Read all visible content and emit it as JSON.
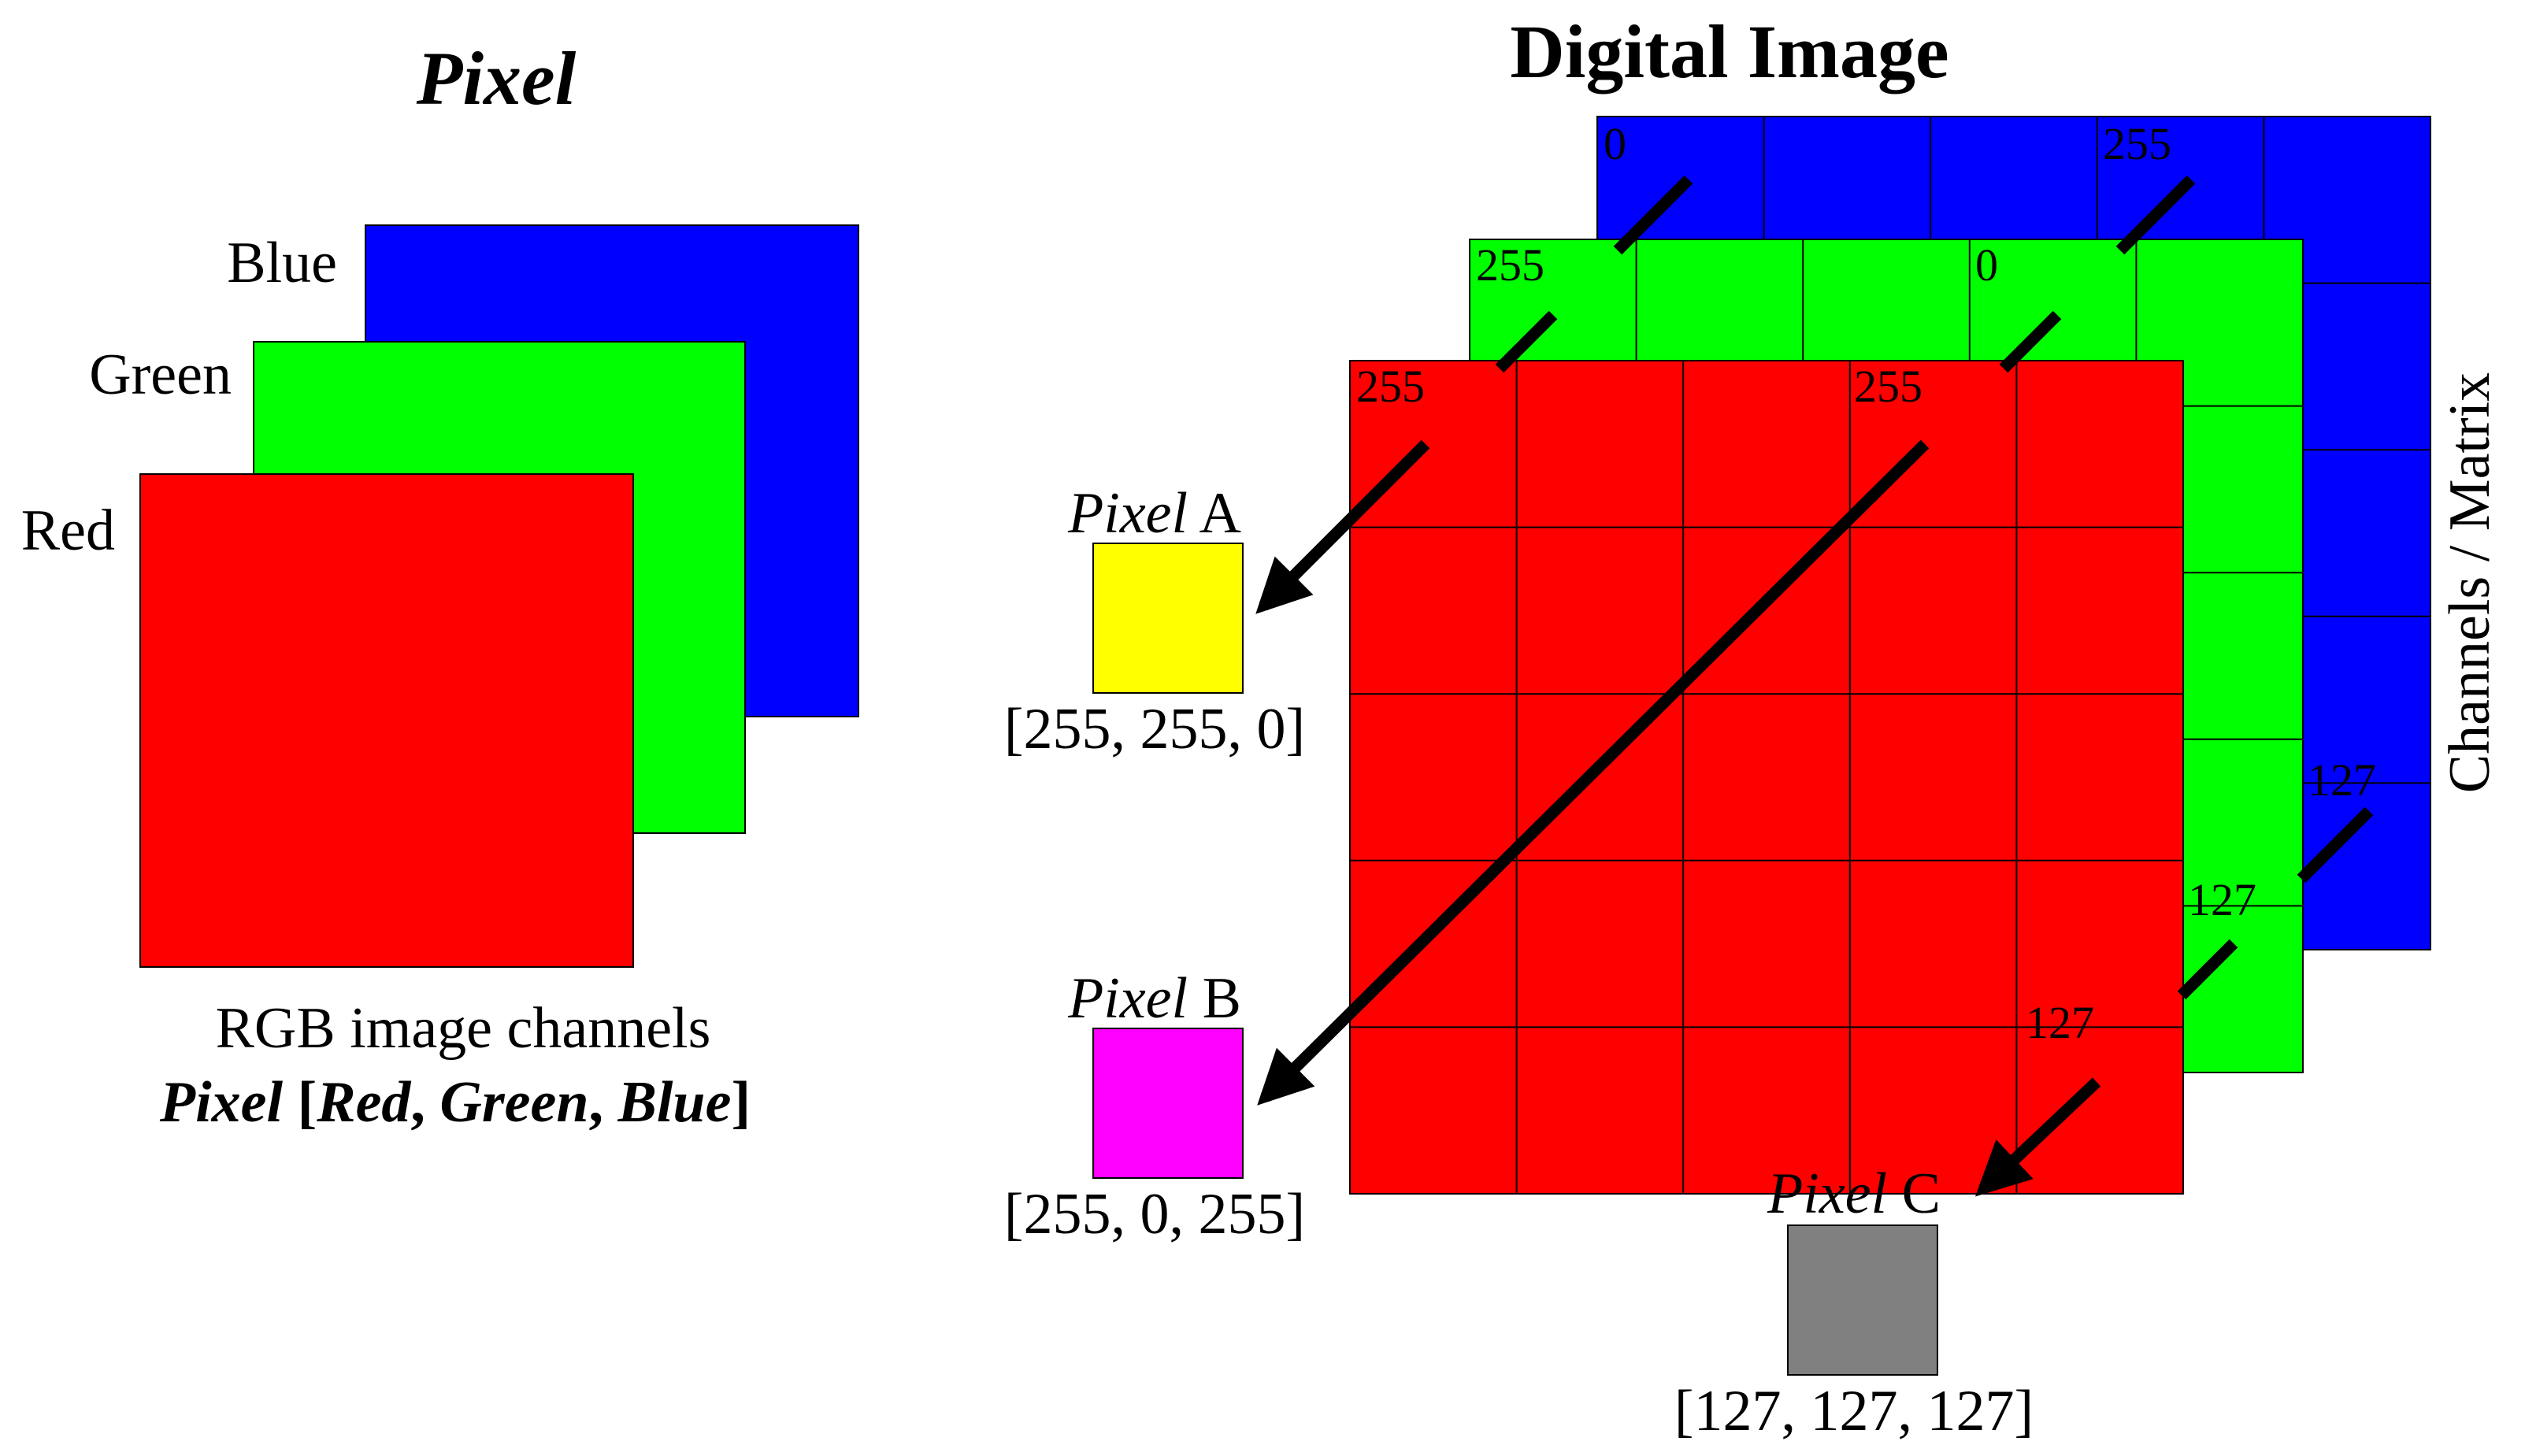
{
  "left_panel": {
    "title": "Pixel",
    "channel_labels": {
      "blue": "Blue",
      "green": "Green",
      "red": "Red"
    },
    "caption_line1": "RGB image channels",
    "caption_line2": {
      "pixel": "Pixel",
      "open": " [",
      "red": "Red",
      "sep1": ", ",
      "green": "Green",
      "sep2": ", ",
      "blue": "Blue",
      "close": "]"
    }
  },
  "right_panel": {
    "title": "Digital Image",
    "side_label": "Channels / Matrix",
    "grid_size": 5,
    "channels": {
      "blue": {
        "color": "#0000ff",
        "values": {
          "top_left": "0",
          "top_mid": "255",
          "bottom_right": "127"
        }
      },
      "green": {
        "color": "#00ff00",
        "values": {
          "top_left": "255",
          "top_mid": "0",
          "bottom_right": "127"
        }
      },
      "red": {
        "color": "#ff0000",
        "values": {
          "top_left": "255",
          "top_mid": "255",
          "bottom_right": "127"
        }
      }
    },
    "pixels": [
      {
        "id": "A",
        "italic": "Pixel",
        "letter": " A",
        "color": "#ffff00",
        "value": "[255, 255, 0]"
      },
      {
        "id": "B",
        "italic": "Pixel",
        "letter": " B",
        "color": "#ff00ff",
        "value": "[255, 0, 255]"
      },
      {
        "id": "C",
        "italic": "Pixel",
        "letter": " C",
        "color": "#808080",
        "value": "[127, 127, 127]"
      }
    ]
  },
  "colors": {
    "red": "#ff0000",
    "green": "#00ff00",
    "blue": "#0000ff",
    "grid_line": "#000000",
    "arrow": "#000000"
  }
}
